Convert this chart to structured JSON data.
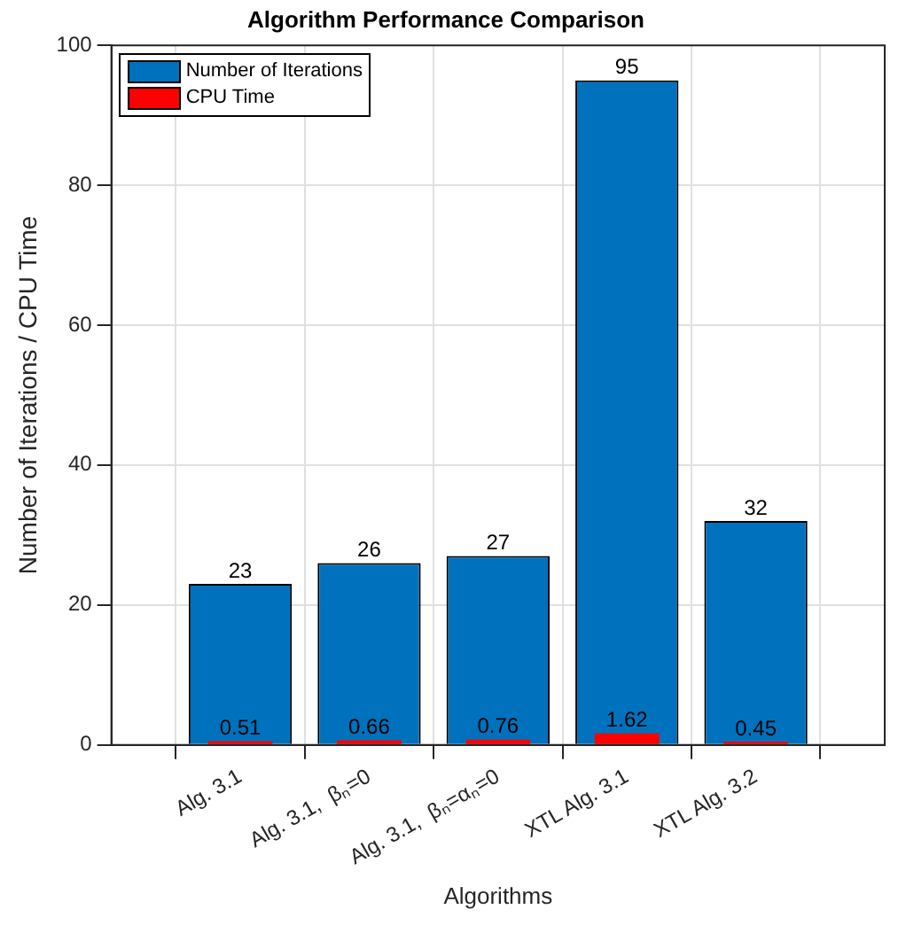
{
  "chart_data": {
    "type": "bar",
    "title": "Algorithm Performance Comparison",
    "xlabel": "Algorithms",
    "ylabel": "Number of Iterations / CPU Time",
    "categories": [
      null,
      "Alg. 3.1",
      "Alg. 3.1,  βₙ=0",
      "Alg. 3.1,  βₙ=αₙ=0",
      "XTL Alg. 3.1",
      "XTL Alg. 3.2",
      null
    ],
    "series": [
      {
        "name": "Number of Iterations",
        "color": "#0072bd",
        "values": [
          null,
          23,
          26,
          27,
          95,
          32,
          null
        ]
      },
      {
        "name": "CPU Time",
        "color": "#ff0000",
        "values": [
          null,
          0.51,
          0.66,
          0.76,
          1.62,
          0.45,
          null
        ]
      }
    ],
    "ylim": [
      0,
      100
    ],
    "yticks": [
      0,
      20,
      40,
      60,
      80,
      100
    ],
    "grid": true,
    "legend": "top left",
    "data_labels": true
  }
}
